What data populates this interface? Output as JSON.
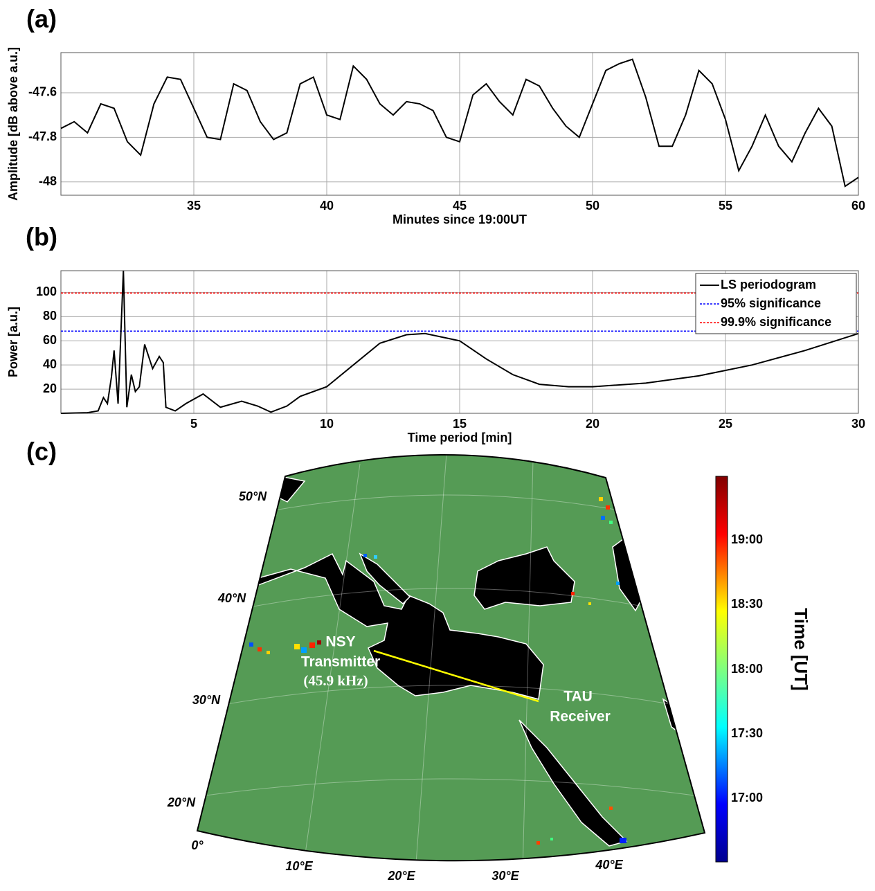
{
  "chart_data": [
    {
      "type": "line",
      "label": "(a)",
      "xlabel": "Minutes since 19:00UT",
      "ylabel": "Amplitude [dB above a.u.]",
      "x": [
        30,
        30.5,
        31,
        31.5,
        32,
        32.5,
        33,
        33.5,
        34,
        34.5,
        35,
        35.5,
        36,
        36.5,
        37,
        37.5,
        38,
        38.5,
        39,
        39.5,
        40,
        40.5,
        41,
        41.5,
        42,
        42.5,
        43,
        43.5,
        44,
        44.5,
        45,
        45.5,
        46,
        46.5,
        47,
        47.5,
        48,
        48.5,
        49,
        49.5,
        50,
        50.5,
        51,
        51.5,
        52,
        52.5,
        53,
        53.5,
        54,
        54.5,
        55,
        55.5,
        56,
        56.5,
        57,
        57.5,
        58,
        58.5,
        59,
        59.5,
        60
      ],
      "values": [
        -47.76,
        -47.73,
        -47.78,
        -47.65,
        -47.67,
        -47.82,
        -47.88,
        -47.65,
        -47.53,
        -47.54,
        -47.67,
        -47.8,
        -47.81,
        -47.56,
        -47.59,
        -47.73,
        -47.81,
        -47.78,
        -47.56,
        -47.53,
        -47.7,
        -47.72,
        -47.48,
        -47.54,
        -47.65,
        -47.7,
        -47.64,
        -47.65,
        -47.68,
        -47.8,
        -47.82,
        -47.61,
        -47.56,
        -47.64,
        -47.7,
        -47.54,
        -47.57,
        -47.67,
        -47.75,
        -47.8,
        -47.65,
        -47.5,
        -47.47,
        -47.45,
        -47.62,
        -47.84,
        -47.84,
        -47.7,
        -47.5,
        -47.56,
        -47.72,
        -47.95,
        -47.84,
        -47.7,
        -47.84,
        -47.91,
        -47.78,
        -47.67,
        -47.75,
        -48.02,
        -47.98
      ],
      "color": "#000000",
      "xlim": [
        30,
        60
      ],
      "ylim": [
        -48.06,
        -47.42
      ],
      "xticks": [
        35,
        40,
        45,
        50,
        55,
        60
      ],
      "yticks": [
        -48,
        -47.8,
        -47.6
      ],
      "grid": true
    },
    {
      "type": "line",
      "label": "(b)",
      "xlabel": "Time period [min]",
      "ylabel": "Power [a.u.]",
      "x": [
        0,
        1,
        1.4,
        1.6,
        1.75,
        1.9,
        2.0,
        2.15,
        2.35,
        2.48,
        2.65,
        2.8,
        2.95,
        3.15,
        3.45,
        3.7,
        3.85,
        3.95,
        4.3,
        4.7,
        5.35,
        6,
        6.8,
        7.4,
        7.9,
        8.5,
        9,
        10,
        11,
        12,
        13,
        13.7,
        15,
        16,
        17,
        18,
        19.1,
        20,
        22,
        24,
        26,
        28,
        30
      ],
      "series": [
        {
          "name": "LS periodogram",
          "color": "#000000",
          "values": [
            0,
            0.5,
            2,
            13,
            8,
            30,
            52,
            8,
            118,
            5,
            32,
            18,
            22,
            57,
            37,
            47,
            42,
            5,
            2,
            8,
            16,
            5,
            10,
            6,
            1,
            6,
            14,
            22,
            40,
            58,
            65,
            66,
            60,
            45,
            32,
            24,
            22,
            22,
            25,
            31,
            40,
            52,
            66
          ]
        }
      ],
      "hlines": [
        {
          "name": "95% significance",
          "color": "#0000ff",
          "value": 68
        },
        {
          "name": "99.9% significance",
          "color": "#ff0000",
          "value": 99.5
        }
      ],
      "xlim": [
        0,
        30
      ],
      "ylim": [
        0,
        118
      ],
      "xticks": [
        5,
        10,
        15,
        20,
        25,
        30
      ],
      "yticks": [
        20,
        40,
        60,
        80,
        100
      ],
      "grid": true,
      "legend": "upper right"
    }
  ],
  "map": {
    "label": "(c)",
    "lat_labels": [
      "50°N",
      "40°N",
      "30°N",
      "20°N",
      "0°"
    ],
    "lon_labels": [
      "10°E",
      "20°E",
      "30°E",
      "40°E"
    ],
    "transmitter": [
      "NSY",
      "Transmitter",
      "(45.9 kHz)"
    ],
    "receiver": [
      "TAU",
      "Receiver"
    ],
    "colorbar": {
      "label": "Time [UT]",
      "ticks": [
        "19:00",
        "18:30",
        "18:00",
        "17:30",
        "17:00"
      ]
    }
  }
}
